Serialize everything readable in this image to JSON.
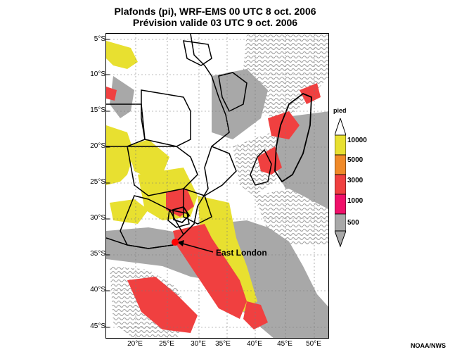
{
  "title_line1": "Plafonds (pi), WRF-EMS 00 UTC 8 oct. 2006",
  "title_line2": "Prévision valide 03 UTC 9 oct. 2006",
  "lat_ticks": [
    "5°S",
    "10°S",
    "15°S",
    "20°S",
    "25°S",
    "30°S",
    "35°S",
    "40°S",
    "45°S"
  ],
  "lon_ticks": [
    "20°E",
    "25°E",
    "30°E",
    "35°E",
    "40°E",
    "45°E",
    "50°E"
  ],
  "legend": {
    "title": "pied",
    "levels": [
      {
        "label": "10000",
        "color": "#e8e030"
      },
      {
        "label": "5000",
        "color": "#f08a28"
      },
      {
        "label": "3000",
        "color": "#f04040"
      },
      {
        "label": "1000",
        "color": "#f0106a"
      },
      {
        "label": "500",
        "color": "#a8a8a8"
      }
    ]
  },
  "annotation": {
    "city": "East London",
    "marker_color": "#ff0000"
  },
  "credit": "NOAA/NWS",
  "colors": {
    "gray": "#a8a8a8",
    "yellow": "#e8e030",
    "red": "#f04040",
    "orange": "#f08a28"
  }
}
